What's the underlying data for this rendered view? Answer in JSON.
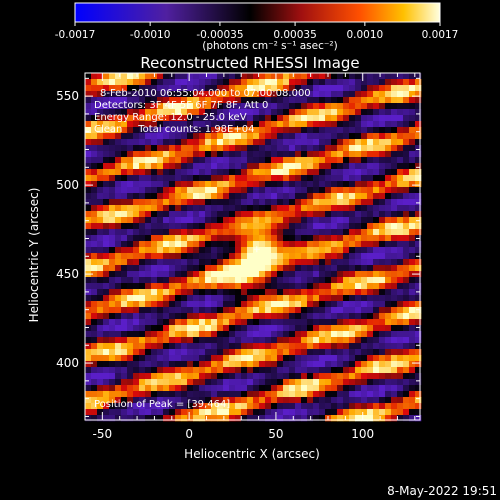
{
  "colorbar": {
    "tick_labels": [
      "-0.0017",
      "-0.0010",
      "-0.00035",
      "0.00035",
      "0.0010",
      "0.0017"
    ],
    "tick_values": [
      -0.0017,
      -0.001,
      -0.00035,
      0.00035,
      0.001,
      0.0017
    ],
    "range": [
      -0.0017,
      0.0017
    ],
    "units_label": "(photons cm⁻² s⁻¹ asec⁻²)"
  },
  "chart_data": {
    "type": "heatmap",
    "title": "Reconstructed RHESSI Image",
    "xlabel": "Heliocentric X (arcsec)",
    "ylabel": "Heliocentric Y (arcsec)",
    "xlim": [
      -60,
      133
    ],
    "ylim": [
      368,
      563
    ],
    "x_ticks": [
      -50,
      0,
      50,
      100
    ],
    "y_ticks": [
      400,
      450,
      500,
      550
    ],
    "peak": [
      39,
      464
    ],
    "grid": false,
    "legend": "none",
    "colormap": [
      "#0000ff",
      "#2a0060",
      "#000000",
      "#8a1010",
      "#ff4000",
      "#ffb000",
      "#ffffd0"
    ],
    "annotations": [
      "8-Feb-2010 06:55:04.000 to 07:00:08.000",
      "Detectors: 3F 4F 5F 6F 7F 8F, Att 0",
      "Energy Range: 12.0 - 25.0 keV",
      "Clean     Total counts: 1.98E+04",
      "Position of Peak = [39,464]"
    ]
  },
  "footer": {
    "timestamp": "8-May-2022 19:51"
  }
}
